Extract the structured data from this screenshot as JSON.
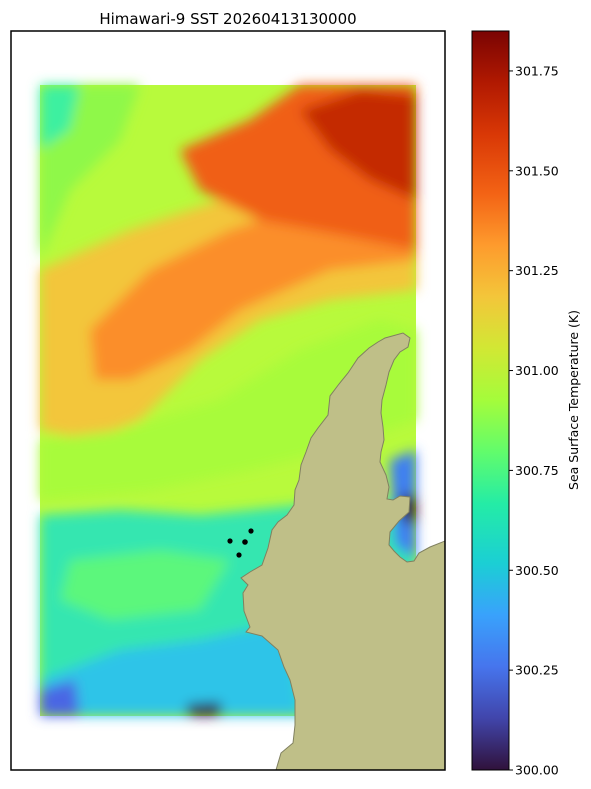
{
  "chart_data": {
    "type": "heatmap",
    "title": "Himawari-9 SST 20260413130000",
    "colorbar": {
      "label": "Sea Surface Temperature (K)",
      "min": 300.0,
      "max": 301.85,
      "ticks": [
        "300.00",
        "300.25",
        "300.50",
        "300.75",
        "301.00",
        "301.25",
        "301.50",
        "301.75"
      ],
      "colormap": "turbo"
    },
    "land_color": "#bfbf88",
    "marker_color": "#000000",
    "markers": [
      {
        "label": "",
        "note": "site"
      },
      {
        "label": "",
        "note": "site"
      },
      {
        "label": "",
        "note": "site"
      },
      {
        "label": "",
        "note": "site"
      }
    ]
  }
}
